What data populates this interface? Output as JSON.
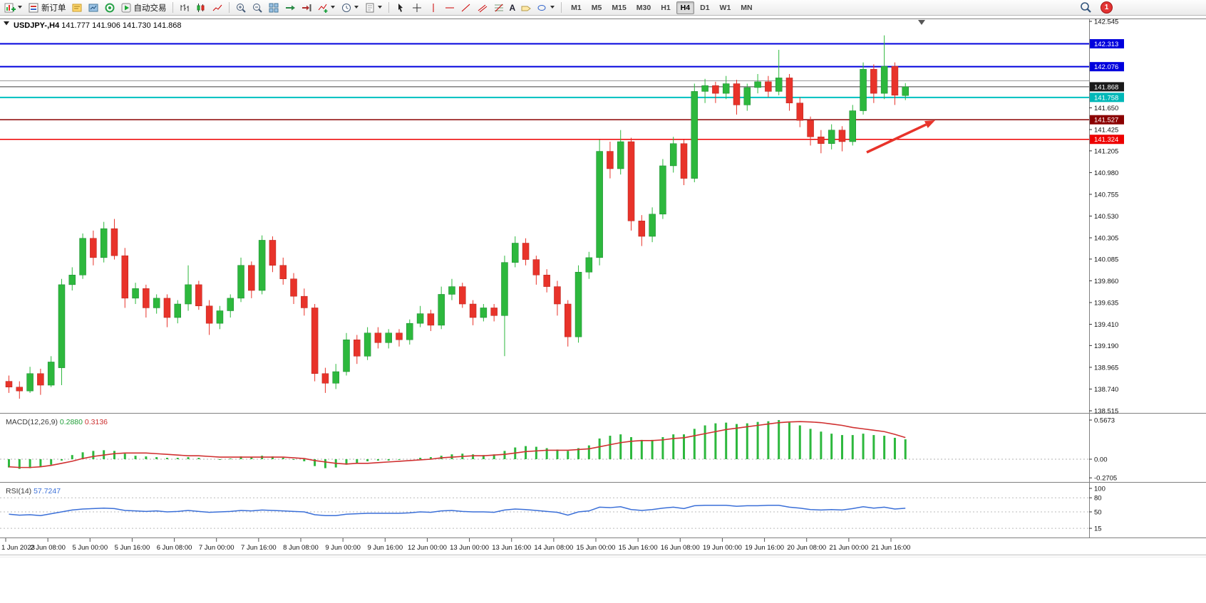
{
  "toolbar": {
    "new_order_label": "新订单",
    "auto_trading_label": "自动交易",
    "text_tool_glyph": "A",
    "timeframes": [
      "M1",
      "M5",
      "M15",
      "M30",
      "H1",
      "H4",
      "D1",
      "W1",
      "MN"
    ],
    "active_timeframe": "H4",
    "notification_count": "1"
  },
  "chart": {
    "symbol": "USDJPY-,H4",
    "ohlc_text": "141.777 141.906 141.730 141.868",
    "open": "141.777",
    "high": "141.906",
    "low": "141.730",
    "close": "141.868"
  },
  "price_axis": {
    "labels": [
      {
        "text": "142.545",
        "value": 142.545
      },
      {
        "text": "141.650",
        "value": 141.65
      },
      {
        "text": "141.425",
        "value": 141.425
      },
      {
        "text": "141.205",
        "value": 141.205
      },
      {
        "text": "140.980",
        "value": 140.98
      },
      {
        "text": "140.755",
        "value": 140.755
      },
      {
        "text": "140.530",
        "value": 140.53
      },
      {
        "text": "140.305",
        "value": 140.305
      },
      {
        "text": "140.085",
        "value": 140.085
      },
      {
        "text": "139.860",
        "value": 139.86
      },
      {
        "text": "139.635",
        "value": 139.635
      },
      {
        "text": "139.410",
        "value": 139.41
      },
      {
        "text": "139.190",
        "value": 139.19
      },
      {
        "text": "138.965",
        "value": 138.965
      },
      {
        "text": "138.740",
        "value": 138.74
      },
      {
        "text": "138.515",
        "value": 138.515
      }
    ],
    "highlights": [
      {
        "text": "142.313",
        "value": 142.313,
        "bg": "#0000dd"
      },
      {
        "text": "142.076",
        "value": 142.076,
        "bg": "#0000dd"
      },
      {
        "text": "141.868",
        "value": 141.868,
        "bg": "#1a1a1a"
      },
      {
        "text": "141.758",
        "value": 141.758,
        "bg": "#00b8b8"
      },
      {
        "text": "141.527",
        "value": 141.527,
        "bg": "#8b0000"
      },
      {
        "text": "141.324",
        "value": 141.324,
        "bg": "#ee0000"
      }
    ]
  },
  "time_axis": {
    "labels": [
      "1 Jun 2023",
      "2 Jun 08:00",
      "5 Jun 00:00",
      "5 Jun 16:00",
      "6 Jun 08:00",
      "7 Jun 00:00",
      "7 Jun 16:00",
      "8 Jun 08:00",
      "9 Jun 00:00",
      "9 Jun 16:00",
      "12 Jun 00:00",
      "13 Jun 00:00",
      "13 Jun 16:00",
      "14 Jun 08:00",
      "15 Jun 00:00",
      "15 Jun 16:00",
      "16 Jun 08:00",
      "19 Jun 00:00",
      "19 Jun 16:00",
      "20 Jun 08:00",
      "21 Jun 00:00",
      "21 Jun 16:00"
    ]
  },
  "chart_data": {
    "type": "candlestick",
    "symbol": "USDJPY",
    "timeframe": "H4",
    "price_range": [
      138.515,
      142.545
    ],
    "candles": [
      [
        138.82,
        138.88,
        138.7,
        138.76
      ],
      [
        138.76,
        138.82,
        138.64,
        138.72
      ],
      [
        138.72,
        138.97,
        138.7,
        138.9
      ],
      [
        138.9,
        138.95,
        138.68,
        138.78
      ],
      [
        138.78,
        139.08,
        138.76,
        139.02
      ],
      [
        138.96,
        139.88,
        138.78,
        139.82
      ],
      [
        139.82,
        140.0,
        139.76,
        139.92
      ],
      [
        139.92,
        140.35,
        139.88,
        140.3
      ],
      [
        140.3,
        140.38,
        140.02,
        140.1
      ],
      [
        140.1,
        140.47,
        140.05,
        140.4
      ],
      [
        140.4,
        140.5,
        140.08,
        140.12
      ],
      [
        140.12,
        140.2,
        139.58,
        139.68
      ],
      [
        139.68,
        139.84,
        139.62,
        139.78
      ],
      [
        139.78,
        139.82,
        139.48,
        139.58
      ],
      [
        139.58,
        139.72,
        139.52,
        139.68
      ],
      [
        139.68,
        139.72,
        139.38,
        139.48
      ],
      [
        139.48,
        139.66,
        139.42,
        139.62
      ],
      [
        139.62,
        140.02,
        139.55,
        139.82
      ],
      [
        139.82,
        139.86,
        139.56,
        139.6
      ],
      [
        139.6,
        139.66,
        139.3,
        139.42
      ],
      [
        139.42,
        139.6,
        139.36,
        139.55
      ],
      [
        139.55,
        139.72,
        139.48,
        139.68
      ],
      [
        139.68,
        140.1,
        139.64,
        140.02
      ],
      [
        140.02,
        140.06,
        139.68,
        139.76
      ],
      [
        139.76,
        140.33,
        139.72,
        140.28
      ],
      [
        140.28,
        140.32,
        139.95,
        140.02
      ],
      [
        140.02,
        140.1,
        139.82,
        139.88
      ],
      [
        139.88,
        139.94,
        139.62,
        139.7
      ],
      [
        139.7,
        139.78,
        139.5,
        139.58
      ],
      [
        139.58,
        139.62,
        138.82,
        138.9
      ],
      [
        138.9,
        138.96,
        138.7,
        138.8
      ],
      [
        138.8,
        139.0,
        138.74,
        138.92
      ],
      [
        138.92,
        139.32,
        138.88,
        139.25
      ],
      [
        139.25,
        139.3,
        139.0,
        139.08
      ],
      [
        139.08,
        139.38,
        139.04,
        139.32
      ],
      [
        139.32,
        139.38,
        139.16,
        139.22
      ],
      [
        139.22,
        139.36,
        139.16,
        139.32
      ],
      [
        139.32,
        139.36,
        139.18,
        139.25
      ],
      [
        139.25,
        139.46,
        139.2,
        139.42
      ],
      [
        139.42,
        139.6,
        139.38,
        139.52
      ],
      [
        139.52,
        139.56,
        139.34,
        139.4
      ],
      [
        139.4,
        139.8,
        139.36,
        139.72
      ],
      [
        139.72,
        139.88,
        139.66,
        139.8
      ],
      [
        139.8,
        139.84,
        139.58,
        139.62
      ],
      [
        139.62,
        139.66,
        139.4,
        139.48
      ],
      [
        139.48,
        139.62,
        139.44,
        139.58
      ],
      [
        139.58,
        139.62,
        139.44,
        139.5
      ],
      [
        139.5,
        140.12,
        139.08,
        140.05
      ],
      [
        140.05,
        140.32,
        140.0,
        140.25
      ],
      [
        140.25,
        140.3,
        140.02,
        140.08
      ],
      [
        140.08,
        140.12,
        139.82,
        139.92
      ],
      [
        139.92,
        139.98,
        139.74,
        139.8
      ],
      [
        139.8,
        139.86,
        139.5,
        139.62
      ],
      [
        139.62,
        139.66,
        139.18,
        139.28
      ],
      [
        139.28,
        140.02,
        139.22,
        139.95
      ],
      [
        139.95,
        140.16,
        139.88,
        140.1
      ],
      [
        140.1,
        141.32,
        140.02,
        141.2
      ],
      [
        141.2,
        141.3,
        140.92,
        141.02
      ],
      [
        141.02,
        141.42,
        140.96,
        141.3
      ],
      [
        141.3,
        141.34,
        140.38,
        140.48
      ],
      [
        140.48,
        140.54,
        140.22,
        140.32
      ],
      [
        140.32,
        140.62,
        140.26,
        140.55
      ],
      [
        140.55,
        141.12,
        140.5,
        141.05
      ],
      [
        141.05,
        141.35,
        140.98,
        141.28
      ],
      [
        141.28,
        141.32,
        140.85,
        140.92
      ],
      [
        140.92,
        141.9,
        140.88,
        141.82
      ],
      [
        141.82,
        141.95,
        141.7,
        141.88
      ],
      [
        141.88,
        141.92,
        141.7,
        141.8
      ],
      [
        141.8,
        141.98,
        141.74,
        141.9
      ],
      [
        141.9,
        141.94,
        141.58,
        141.68
      ],
      [
        141.68,
        141.9,
        141.62,
        141.86
      ],
      [
        141.86,
        142.0,
        141.8,
        141.92
      ],
      [
        141.92,
        141.98,
        141.76,
        141.82
      ],
      [
        141.82,
        142.25,
        141.78,
        141.96
      ],
      [
        141.96,
        142.0,
        141.62,
        141.7
      ],
      [
        141.7,
        141.76,
        141.45,
        141.52
      ],
      [
        141.52,
        141.56,
        141.26,
        141.35
      ],
      [
        141.35,
        141.42,
        141.18,
        141.28
      ],
      [
        141.28,
        141.48,
        141.22,
        141.42
      ],
      [
        141.42,
        141.46,
        141.2,
        141.3
      ],
      [
        141.3,
        141.68,
        141.26,
        141.62
      ],
      [
        141.62,
        142.12,
        141.58,
        142.05
      ],
      [
        142.05,
        142.1,
        141.7,
        141.8
      ],
      [
        141.8,
        142.4,
        141.74,
        142.08
      ],
      [
        142.08,
        142.12,
        141.68,
        141.78
      ],
      [
        141.777,
        141.906,
        141.73,
        141.868
      ]
    ],
    "hlines": [
      {
        "price": 142.313,
        "color": "#0000dd",
        "width": 2
      },
      {
        "price": 142.076,
        "color": "#0000dd",
        "width": 2
      },
      {
        "price": 141.93,
        "color": "#9a9a9a",
        "width": 1
      },
      {
        "price": 141.868,
        "color": "#3c3c3c",
        "width": 1
      },
      {
        "price": 141.758,
        "color": "#00c0c0",
        "width": 2
      },
      {
        "price": 141.527,
        "color": "#8b0000",
        "width": 1.5
      },
      {
        "price": 141.324,
        "color": "#ee0000",
        "width": 1.5
      }
    ],
    "indicators": {
      "macd": {
        "name": "MACD(12,26,9)",
        "value": "0.2880",
        "signal_value": "0.3136",
        "axis_labels": [
          {
            "text": "0.5673",
            "value": 0.5673
          },
          {
            "text": "0.00",
            "value": 0
          },
          {
            "text": "-0.2705",
            "value": -0.2705
          }
        ],
        "hist": [
          -0.12,
          -0.14,
          -0.13,
          -0.11,
          -0.08,
          -0.02,
          0.06,
          0.1,
          0.12,
          0.13,
          0.12,
          0.08,
          0.05,
          0.04,
          0.03,
          0.02,
          0.02,
          0.03,
          0.02,
          0.0,
          -0.01,
          0.01,
          0.04,
          0.03,
          0.05,
          0.04,
          0.02,
          -0.01,
          -0.03,
          -0.1,
          -0.13,
          -0.12,
          -0.08,
          -0.06,
          -0.03,
          -0.02,
          -0.02,
          -0.01,
          0.0,
          0.02,
          0.03,
          0.05,
          0.07,
          0.08,
          0.07,
          0.06,
          0.07,
          0.12,
          0.17,
          0.19,
          0.18,
          0.16,
          0.14,
          0.12,
          0.16,
          0.2,
          0.3,
          0.34,
          0.36,
          0.32,
          0.28,
          0.28,
          0.32,
          0.36,
          0.36,
          0.44,
          0.49,
          0.52,
          0.53,
          0.51,
          0.52,
          0.54,
          0.55,
          0.567,
          0.53,
          0.49,
          0.44,
          0.4,
          0.37,
          0.35,
          0.35,
          0.37,
          0.35,
          0.34,
          0.31,
          0.288
        ],
        "signal": [
          -0.11,
          -0.12,
          -0.12,
          -0.11,
          -0.09,
          -0.06,
          -0.03,
          0.01,
          0.04,
          0.06,
          0.08,
          0.09,
          0.09,
          0.09,
          0.08,
          0.07,
          0.06,
          0.05,
          0.05,
          0.04,
          0.03,
          0.03,
          0.03,
          0.03,
          0.03,
          0.03,
          0.03,
          0.02,
          0.01,
          -0.02,
          -0.04,
          -0.06,
          -0.07,
          -0.06,
          -0.06,
          -0.05,
          -0.04,
          -0.03,
          -0.02,
          -0.01,
          0.0,
          0.02,
          0.03,
          0.04,
          0.05,
          0.05,
          0.06,
          0.07,
          0.09,
          0.11,
          0.12,
          0.13,
          0.13,
          0.13,
          0.14,
          0.15,
          0.18,
          0.21,
          0.24,
          0.26,
          0.27,
          0.27,
          0.28,
          0.3,
          0.31,
          0.34,
          0.37,
          0.4,
          0.43,
          0.45,
          0.47,
          0.49,
          0.51,
          0.53,
          0.54,
          0.545,
          0.54,
          0.53,
          0.51,
          0.49,
          0.46,
          0.44,
          0.42,
          0.4,
          0.36,
          0.3136
        ]
      },
      "rsi": {
        "name": "RSI(14)",
        "value": "57.7247",
        "levels": [
          80,
          50,
          15
        ],
        "axis_labels": [
          {
            "text": "100",
            "value": 100
          },
          {
            "text": "80",
            "value": 80
          },
          {
            "text": "50",
            "value": 50
          },
          {
            "text": "15",
            "value": 15
          }
        ],
        "values": [
          45,
          43,
          44,
          42,
          46,
          50,
          54,
          56,
          57,
          58,
          57,
          53,
          52,
          51,
          52,
          50,
          51,
          53,
          51,
          49,
          50,
          51,
          53,
          52,
          54,
          53,
          52,
          51,
          50,
          44,
          42,
          42,
          45,
          46,
          47,
          47,
          47,
          47,
          48,
          50,
          49,
          52,
          53,
          51,
          50,
          50,
          49,
          54,
          56,
          55,
          53,
          51,
          49,
          43,
          50,
          52,
          60,
          59,
          61,
          55,
          53,
          55,
          58,
          60,
          57,
          63,
          64,
          64,
          64,
          62,
          63,
          63,
          64,
          64,
          60,
          58,
          55,
          54,
          55,
          54,
          57,
          61,
          58,
          60,
          56,
          57.72
        ]
      }
    },
    "annotations": [
      {
        "type": "arrow",
        "from": [
          1216,
          192
        ],
        "to": [
          1312,
          147
        ],
        "color": "#e8332a"
      }
    ]
  },
  "colors": {
    "up": "#2db83d",
    "down": "#e8332a",
    "macd_hist": "#2db83d",
    "macd_signal": "#d03030",
    "rsi_line": "#3a6fd8",
    "bid_line": "#3c3c3c",
    "resistance_blue": "#0000dd",
    "support_red": "#ee0000"
  }
}
